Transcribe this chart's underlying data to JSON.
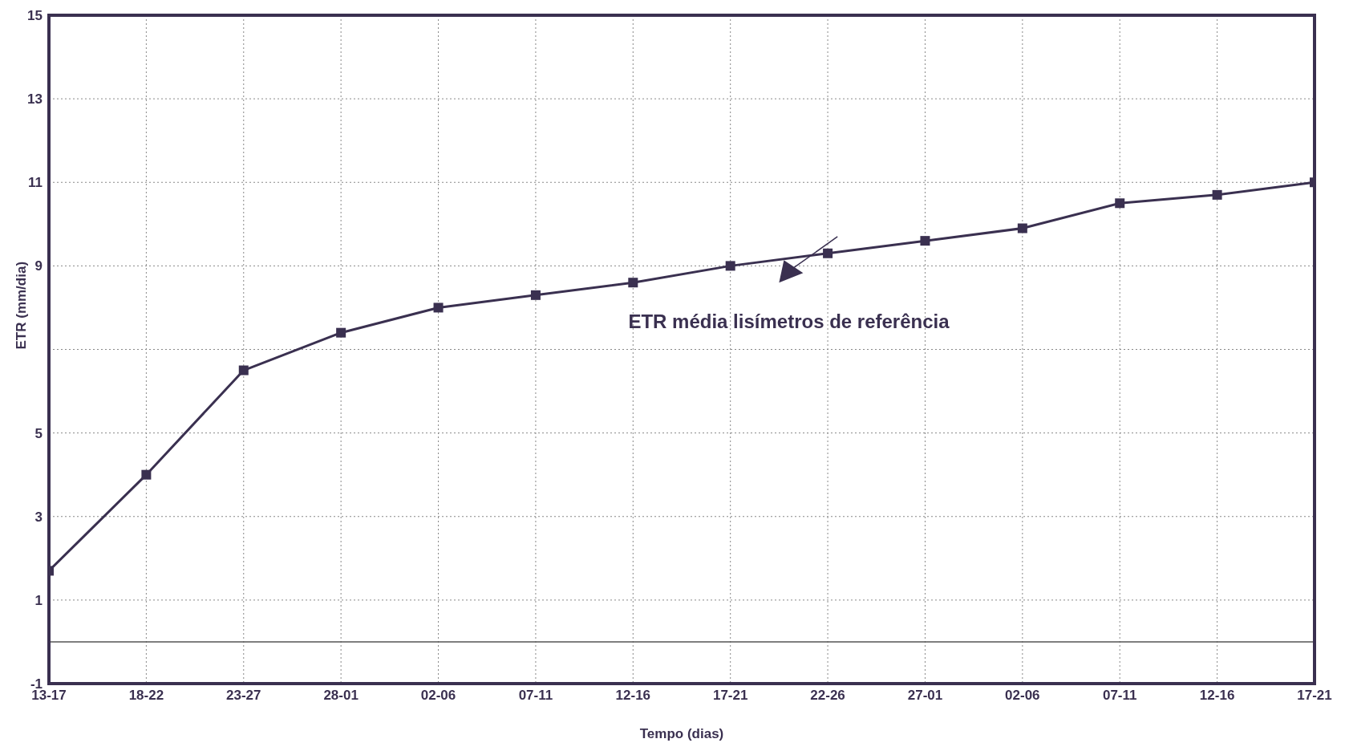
{
  "chart_data": {
    "type": "line",
    "xlabel": "Tempo (dias)",
    "ylabel": "ETR (mm/dia)",
    "categories": [
      "13-17",
      "18-22",
      "23-27",
      "28-01",
      "02-06",
      "07-11",
      "12-16",
      "17-21",
      "22-26",
      "27-01",
      "02-06",
      "07-11",
      "12-16",
      "17-21"
    ],
    "series": [
      {
        "name": "ETR média lisímetros de referência",
        "color": "#3a3050",
        "values": [
          1.7,
          4.0,
          6.5,
          7.4,
          8.0,
          8.3,
          8.6,
          9.0,
          9.3,
          9.6,
          9.9,
          10.5,
          10.7,
          11.0
        ]
      }
    ],
    "ylim": [
      -1,
      15
    ],
    "yticks": [
      -1,
      1,
      3,
      5,
      {
        "value": 7,
        "label": null
      },
      9,
      11,
      13,
      15
    ],
    "ref_lines": [
      {
        "axis": "y",
        "value": 0
      }
    ],
    "grid": true,
    "marker": "square",
    "line_style": "solid"
  }
}
